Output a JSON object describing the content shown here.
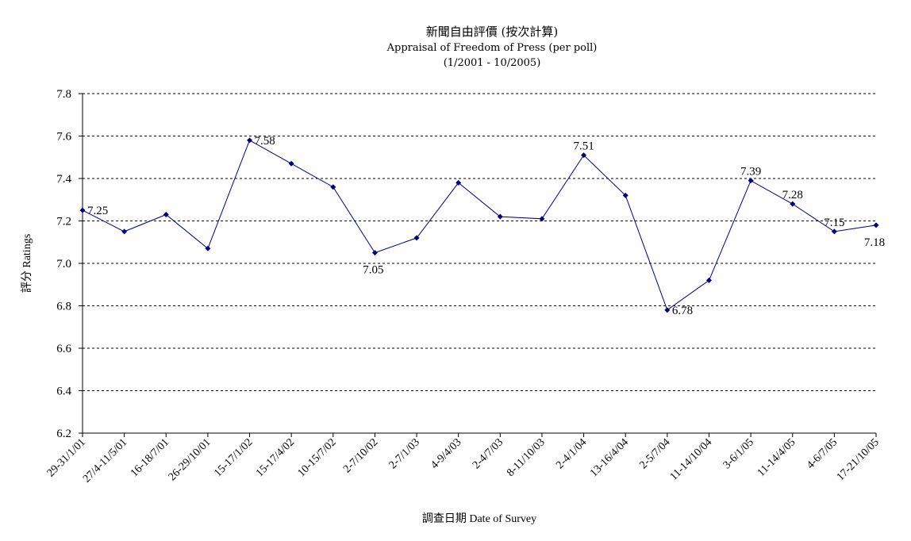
{
  "title": {
    "line1": "新聞自由評價 (按次計算)",
    "line2": "Appraisal of Freedom of Press (per poll)",
    "line3": "(1/2001 - 10/2005)"
  },
  "chart_data": {
    "type": "line",
    "xlabel": "調查日期 Date of Survey",
    "ylabel": "評分 Ratings",
    "ylim": [
      6.2,
      7.8
    ],
    "yticks": [
      "7.8",
      "7.6",
      "7.4",
      "7.2",
      "7.0",
      "6.8",
      "6.6",
      "6.4",
      "6.2"
    ],
    "grid": true,
    "categories": [
      "29-31/1/01",
      "27/4-11/5/01",
      "16-18/7/01",
      "26-29/10/01",
      "15-17/1/02",
      "15-17/4/02",
      "10-15/7/02",
      "2-7/10/02",
      "2-7/1/03",
      "4-9/4/03",
      "2-4/7/03",
      "8-11/10/03",
      "2-4/1/04",
      "13-16/4/04",
      "2-5/7/04",
      "11-14/10/04",
      "3-6/1/05",
      "11-14/4/05",
      "4-6/7/05",
      "17-21/10/05"
    ],
    "series": [
      {
        "values": [
          7.25,
          7.15,
          7.23,
          7.07,
          7.58,
          7.47,
          7.36,
          7.05,
          7.12,
          7.38,
          7.22,
          7.21,
          7.51,
          7.32,
          6.78,
          6.92,
          7.39,
          7.28,
          7.15,
          7.18
        ],
        "color": "#000080"
      }
    ],
    "data_labels": [
      {
        "index": 0,
        "text": "7.25",
        "pos": "right"
      },
      {
        "index": 4,
        "text": "7.58",
        "pos": "right"
      },
      {
        "index": 7,
        "text": "7.05",
        "pos": "below"
      },
      {
        "index": 12,
        "text": "7.51",
        "pos": "above"
      },
      {
        "index": 14,
        "text": "6.78",
        "pos": "right"
      },
      {
        "index": 16,
        "text": "7.39",
        "pos": "above"
      },
      {
        "index": 17,
        "text": "7.28",
        "pos": "above"
      },
      {
        "index": 18,
        "text": "7.15",
        "pos": "above"
      },
      {
        "index": 19,
        "text": "7.18",
        "pos": "below"
      }
    ]
  }
}
